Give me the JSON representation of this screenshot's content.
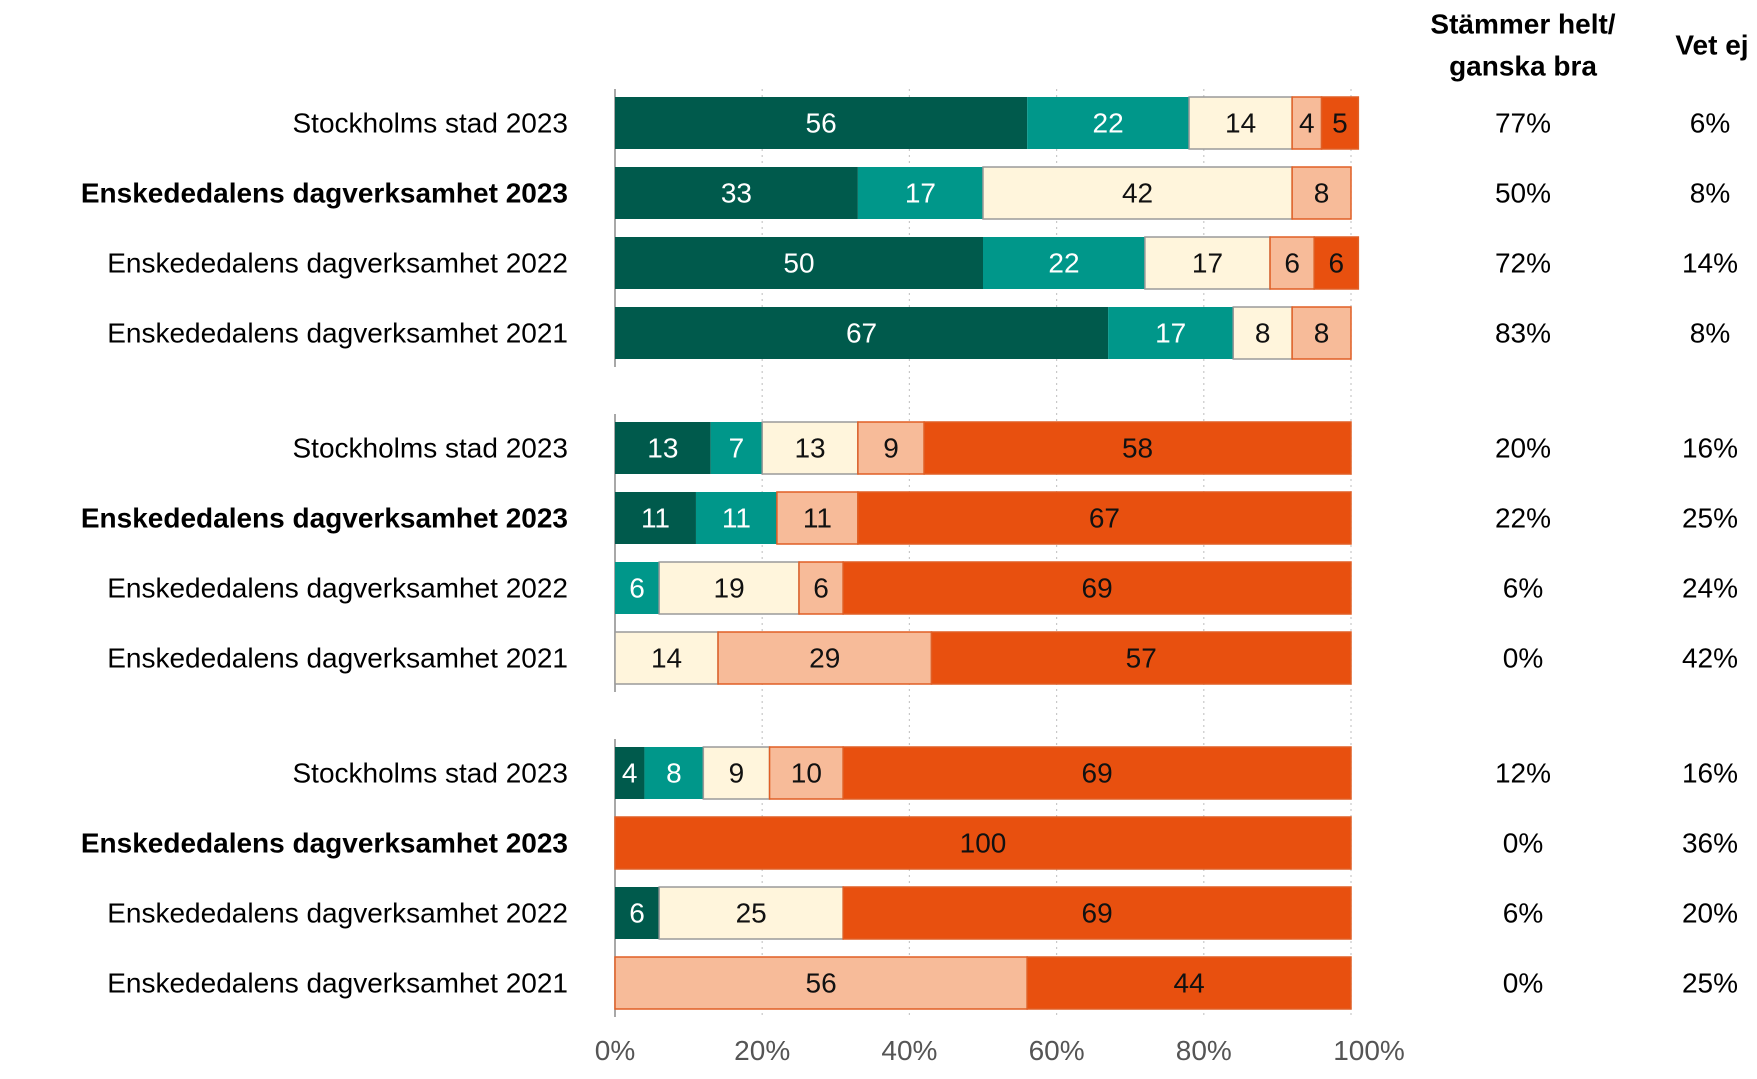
{
  "chart_data": {
    "type": "bar",
    "orientation": "horizontal",
    "stacked": true,
    "title": "",
    "xlabel": "",
    "ylabel": "",
    "xlim": [
      0,
      100
    ],
    "x_ticks": [
      "0%",
      "20%",
      "40%",
      "60%",
      "80%",
      "100%"
    ],
    "grid": "vertical dotted",
    "legend": "none",
    "segment_colors": [
      "#005a4c",
      "#00978a",
      "#fff5dc",
      "#f7bb99",
      "#e8500f"
    ],
    "columns": [
      {
        "key": "helt_ganska",
        "header_lines": [
          "Stämmer helt/",
          "ganska bra"
        ]
      },
      {
        "key": "vet_ej",
        "header_lines": [
          "Vet ej"
        ]
      }
    ],
    "groups": [
      {
        "rows": [
          {
            "label": "Stockholms stad 2023",
            "bold": false,
            "values": [
              56,
              22,
              14,
              4,
              5
            ],
            "helt_ganska": "77%",
            "vet_ej": "6%"
          },
          {
            "label": "Enskededalens dagverksamhet 2023",
            "bold": true,
            "values": [
              33,
              17,
              42,
              8,
              0
            ],
            "helt_ganska": "50%",
            "vet_ej": "8%"
          },
          {
            "label": "Enskededalens dagverksamhet 2022",
            "bold": false,
            "values": [
              50,
              22,
              17,
              6,
              6
            ],
            "helt_ganska": "72%",
            "vet_ej": "14%"
          },
          {
            "label": "Enskededalens dagverksamhet 2021",
            "bold": false,
            "values": [
              67,
              17,
              8,
              8,
              0
            ],
            "helt_ganska": "83%",
            "vet_ej": "8%"
          }
        ]
      },
      {
        "rows": [
          {
            "label": "Stockholms stad 2023",
            "bold": false,
            "values": [
              13,
              7,
              13,
              9,
              58
            ],
            "helt_ganska": "20%",
            "vet_ej": "16%"
          },
          {
            "label": "Enskededalens dagverksamhet 2023",
            "bold": true,
            "values": [
              11,
              11,
              0,
              11,
              67
            ],
            "helt_ganska": "22%",
            "vet_ej": "25%"
          },
          {
            "label": "Enskededalens dagverksamhet 2022",
            "bold": false,
            "values": [
              0,
              6,
              19,
              6,
              69
            ],
            "helt_ganska": "6%",
            "vet_ej": "24%"
          },
          {
            "label": "Enskededalens dagverksamhet 2021",
            "bold": false,
            "values": [
              0,
              0,
              14,
              29,
              57
            ],
            "helt_ganska": "0%",
            "vet_ej": "42%"
          }
        ]
      },
      {
        "rows": [
          {
            "label": "Stockholms stad 2023",
            "bold": false,
            "values": [
              4,
              8,
              9,
              10,
              69
            ],
            "helt_ganska": "12%",
            "vet_ej": "16%"
          },
          {
            "label": "Enskededalens dagverksamhet 2023",
            "bold": true,
            "values": [
              0,
              0,
              0,
              0,
              100
            ],
            "helt_ganska": "0%",
            "vet_ej": "36%"
          },
          {
            "label": "Enskededalens dagverksamhet 2022",
            "bold": false,
            "values": [
              6,
              0,
              25,
              0,
              69
            ],
            "helt_ganska": "6%",
            "vet_ej": "20%"
          },
          {
            "label": "Enskededalens dagverksamhet 2021",
            "bold": false,
            "values": [
              0,
              0,
              0,
              56,
              44
            ],
            "helt_ganska": "0%",
            "vet_ej": "25%"
          }
        ]
      }
    ]
  }
}
